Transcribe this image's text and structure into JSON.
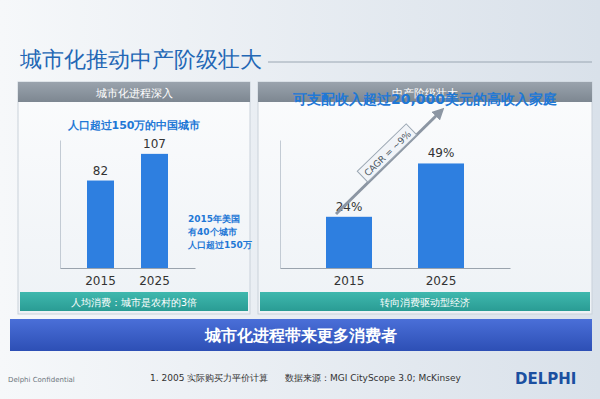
{
  "slide": {
    "title": "城市化推动中产阶级壮大",
    "banner": "城市化进程带来更多消费者",
    "confidential": "Delphi Confidential",
    "footnote": "1. 2005 实际购买力平价计算",
    "source": "数据来源：MGI CityScope 3.0; McKinsey",
    "logo": "DELPHI"
  },
  "chart_data": [
    {
      "type": "bar",
      "title": "城市化进程深入",
      "subtitle": "人口超过150万的中国城市",
      "categories": [
        "2015",
        "2025"
      ],
      "values": [
        82,
        107
      ],
      "color": "#2e7fe0",
      "ylim": [
        0,
        120
      ],
      "data_labels": true,
      "tick_labels": "x",
      "annotations": [
        "2015年美国",
        "有40个城市",
        "人口超过150万"
      ],
      "note": "人均消费：城市是农村的3倍"
    },
    {
      "type": "bar",
      "title": "中产阶级壮大",
      "subtitle": "可支配收入超过20,000美元的高收入家庭",
      "categories": [
        "2015",
        "2025"
      ],
      "values": [
        24,
        49
      ],
      "value_labels": [
        "24%",
        "49%"
      ],
      "color": "#2e7fe0",
      "ylim": [
        0,
        60
      ],
      "data_labels": true,
      "tick_labels": "x",
      "annotations": [
        "CAGR = ~9%"
      ],
      "note": "转向消费驱动型经济"
    }
  ]
}
